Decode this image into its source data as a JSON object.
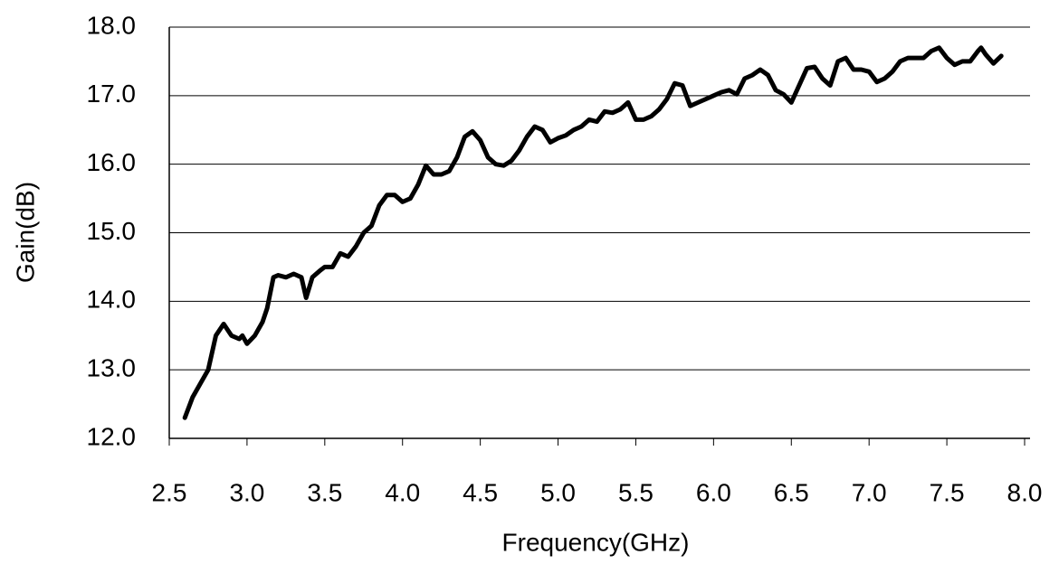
{
  "chart_data": {
    "type": "line",
    "x_label": "Frequency(GHz)",
    "y_label": "Gain(dB)",
    "x": [
      2.6,
      2.65,
      2.7,
      2.75,
      2.8,
      2.85,
      2.9,
      2.95,
      2.97,
      3.0,
      3.05,
      3.1,
      3.13,
      3.17,
      3.2,
      3.25,
      3.3,
      3.35,
      3.38,
      3.42,
      3.47,
      3.5,
      3.55,
      3.6,
      3.65,
      3.7,
      3.75,
      3.8,
      3.85,
      3.9,
      3.95,
      4.0,
      4.05,
      4.1,
      4.15,
      4.2,
      4.25,
      4.3,
      4.35,
      4.4,
      4.45,
      4.5,
      4.55,
      4.6,
      4.65,
      4.7,
      4.75,
      4.8,
      4.85,
      4.9,
      4.95,
      5.0,
      5.05,
      5.1,
      5.15,
      5.2,
      5.25,
      5.3,
      5.35,
      5.4,
      5.45,
      5.5,
      5.55,
      5.6,
      5.65,
      5.7,
      5.75,
      5.8,
      5.85,
      5.9,
      5.95,
      6.0,
      6.05,
      6.1,
      6.15,
      6.2,
      6.25,
      6.3,
      6.35,
      6.4,
      6.45,
      6.5,
      6.55,
      6.6,
      6.65,
      6.7,
      6.75,
      6.8,
      6.85,
      6.9,
      6.95,
      7.0,
      7.05,
      7.1,
      7.15,
      7.2,
      7.25,
      7.3,
      7.35,
      7.4,
      7.45,
      7.5,
      7.55,
      7.6,
      7.65,
      7.7,
      7.72,
      7.75,
      7.8,
      7.85
    ],
    "values": [
      12.3,
      12.6,
      12.8,
      13.0,
      13.5,
      13.67,
      13.5,
      13.45,
      13.5,
      13.38,
      13.5,
      13.7,
      13.9,
      14.35,
      14.38,
      14.35,
      14.4,
      14.35,
      14.05,
      14.35,
      14.45,
      14.5,
      14.5,
      14.7,
      14.65,
      14.8,
      15.0,
      15.1,
      15.4,
      15.55,
      15.55,
      15.45,
      15.5,
      15.7,
      15.98,
      15.85,
      15.85,
      15.9,
      16.1,
      16.4,
      16.48,
      16.35,
      16.1,
      16.0,
      15.98,
      16.05,
      16.2,
      16.4,
      16.55,
      16.5,
      16.32,
      16.38,
      16.42,
      16.5,
      16.55,
      16.65,
      16.62,
      16.77,
      16.75,
      16.8,
      16.9,
      16.65,
      16.65,
      16.7,
      16.8,
      16.95,
      17.18,
      17.15,
      16.85,
      16.9,
      16.95,
      17.0,
      17.05,
      17.08,
      17.02,
      17.25,
      17.3,
      17.38,
      17.3,
      17.08,
      17.02,
      16.9,
      17.15,
      17.4,
      17.42,
      17.25,
      17.15,
      17.5,
      17.55,
      17.38,
      17.38,
      17.35,
      17.2,
      17.25,
      17.35,
      17.5,
      17.55,
      17.55,
      17.55,
      17.65,
      17.7,
      17.55,
      17.45,
      17.5,
      17.5,
      17.65,
      17.7,
      17.6,
      17.47,
      17.58
    ],
    "color": "#000000",
    "xlim": [
      2.5,
      8.0
    ],
    "xticks": [
      {
        "value": 2.5,
        "label": "2.5"
      },
      {
        "value": 3.0,
        "label": "3.0"
      },
      {
        "value": 3.5,
        "label": "3.5"
      },
      {
        "value": 4.0,
        "label": "4.0"
      },
      {
        "value": 4.5,
        "label": "4.5"
      },
      {
        "value": 5.0,
        "label": "5.0"
      },
      {
        "value": 5.5,
        "label": "5.5"
      },
      {
        "value": 6.0,
        "label": "6.0"
      },
      {
        "value": 6.5,
        "label": "6.5"
      },
      {
        "value": 7.0,
        "label": "7.0"
      },
      {
        "value": 7.5,
        "label": "7.5"
      },
      {
        "value": 8.0,
        "label": "8.0"
      }
    ],
    "ylim": [
      12,
      18
    ],
    "yticks": [
      {
        "value": 12,
        "label": "12.0"
      },
      {
        "value": 13,
        "label": "13.0"
      },
      {
        "value": 14,
        "label": "14.0"
      },
      {
        "value": 15,
        "label": "15.0"
      },
      {
        "value": 16,
        "label": "16.0"
      },
      {
        "value": 17,
        "label": "17.0"
      },
      {
        "value": 18,
        "label": "18.0"
      }
    ],
    "grid": true
  }
}
